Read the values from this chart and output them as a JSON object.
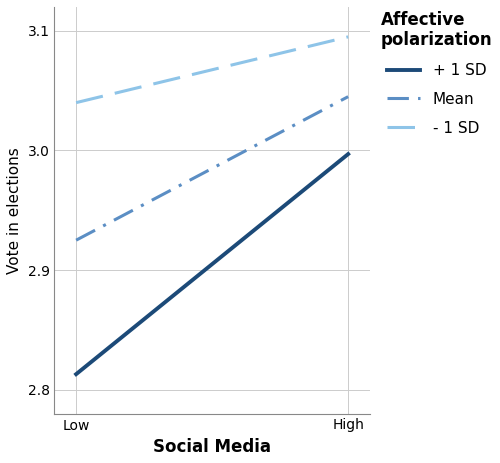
{
  "title": "",
  "xlabel": "Social Media",
  "ylabel": "Vote in elections",
  "legend_title": "Affective\npolarization",
  "xtick_labels": [
    "Low",
    "High"
  ],
  "xtick_positions": [
    0,
    1
  ],
  "ylim": [
    2.78,
    3.12
  ],
  "yticks": [
    2.8,
    2.9,
    3.0,
    3.1
  ],
  "lines": [
    {
      "label": "+ 1 SD",
      "x": [
        0,
        1
      ],
      "y": [
        2.813,
        2.997
      ],
      "color": "#1c4a78",
      "linestyle": "solid",
      "linewidth": 2.8,
      "dashes": null
    },
    {
      "label": "Mean",
      "x": [
        0,
        1
      ],
      "y": [
        2.925,
        3.045
      ],
      "color": "#5b8ec4",
      "linestyle": "dashed",
      "linewidth": 2.2,
      "dashes": [
        7,
        3,
        1,
        3
      ]
    },
    {
      "label": "- 1 SD",
      "x": [
        0,
        1
      ],
      "y": [
        3.04,
        3.095
      ],
      "color": "#8ec4e8",
      "linestyle": "dashed",
      "linewidth": 2.2,
      "dashes": [
        9,
        4
      ]
    }
  ],
  "grid_color": "#cccccc",
  "background_color": "#ffffff",
  "axis_background": "#ffffff",
  "xlabel_fontsize": 12,
  "ylabel_fontsize": 11,
  "tick_fontsize": 10,
  "legend_title_fontsize": 12,
  "legend_fontsize": 11
}
